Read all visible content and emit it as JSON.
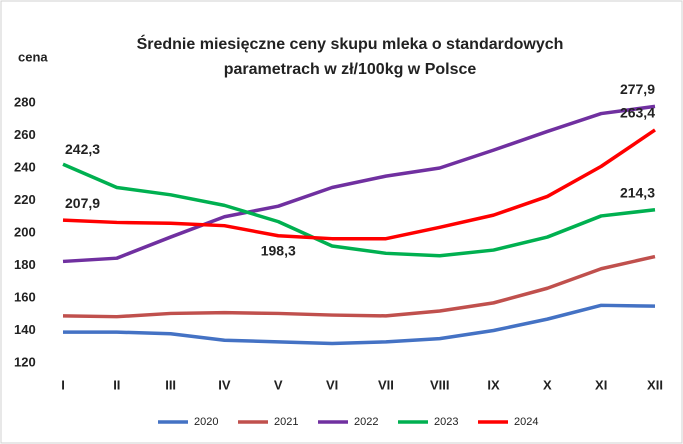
{
  "chart_data": {
    "type": "line",
    "title": [
      "Średnie miesięczne ceny  skupu mleka o standardowych",
      "parametrach  w zł/100kg w Polsce"
    ],
    "y_label": "cena",
    "categories": [
      "I",
      "II",
      "III",
      "IV",
      "V",
      "VI",
      "VII",
      "VIII",
      "IX",
      "X",
      "XI",
      "XII"
    ],
    "series": [
      {
        "name": "2020",
        "color": "#4472c4",
        "values": [
          139,
          139,
          138,
          134,
          133,
          132,
          133,
          135,
          140,
          147,
          155.5,
          155
        ]
      },
      {
        "name": "2021",
        "color": "#c0504d",
        "values": [
          149,
          148.5,
          150.5,
          151,
          150.5,
          149.5,
          149,
          152,
          157,
          166,
          178,
          185.5
        ]
      },
      {
        "name": "2022",
        "color": "#7030a0",
        "values": [
          182.5,
          184.5,
          197.5,
          210,
          216.5,
          228,
          235,
          240,
          251,
          262.5,
          273.5,
          277.9
        ],
        "value_labels": [
          null,
          null,
          null,
          null,
          null,
          null,
          null,
          null,
          null,
          null,
          null,
          "277,9"
        ]
      },
      {
        "name": "2023",
        "color": "#00b050",
        "values": [
          242.3,
          228,
          223.5,
          217,
          207,
          192,
          187.5,
          186,
          189.5,
          197.5,
          210.5,
          214.3
        ],
        "value_labels": [
          "242,3",
          null,
          null,
          null,
          null,
          null,
          null,
          null,
          null,
          null,
          null,
          "214,3"
        ]
      },
      {
        "name": "2024",
        "color": "#ff0000",
        "values": [
          207.9,
          206.5,
          206,
          204.5,
          198.3,
          196.5,
          196.5,
          203.5,
          211,
          222.5,
          241,
          263.4
        ],
        "value_labels": [
          "207,9",
          null,
          null,
          null,
          "198,3",
          null,
          null,
          null,
          null,
          null,
          null,
          "263,4"
        ]
      }
    ],
    "ylim": [
      120,
      280
    ],
    "yticks": [
      120,
      140,
      160,
      180,
      200,
      220,
      240,
      260,
      280
    ],
    "grid": false
  }
}
